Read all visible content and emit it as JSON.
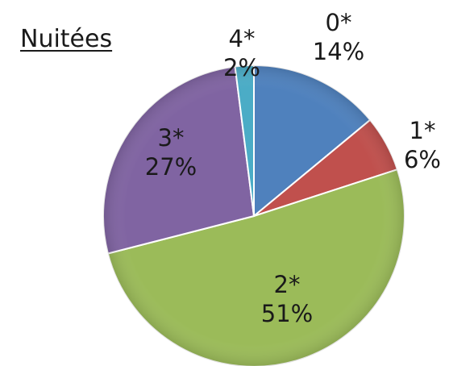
{
  "chart_data": {
    "type": "pie",
    "title": "Nuitées",
    "categories": [
      "0*",
      "1*",
      "2*",
      "3*",
      "4*"
    ],
    "values": [
      14,
      6,
      51,
      27,
      2
    ],
    "value_labels": [
      "14%",
      "6%",
      "51%",
      "27%",
      "2%"
    ],
    "colors": [
      "#4F81BD",
      "#C0504D",
      "#9BBB59",
      "#8064A2",
      "#4BACC6"
    ],
    "start_angle_deg": 0,
    "direction": "clockwise",
    "legend": "none",
    "data_labels": "category and percentage"
  }
}
